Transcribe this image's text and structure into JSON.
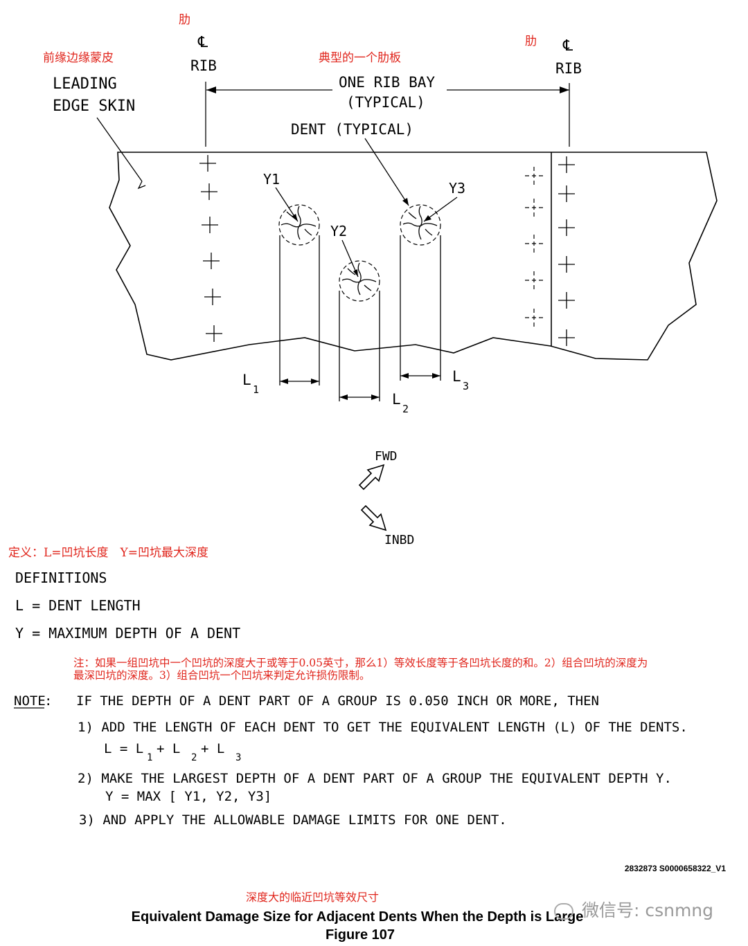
{
  "annotations_cn": {
    "rib_left": "肋",
    "rib_right": "肋",
    "leading_edge": "前缘边缘蒙皮",
    "one_rib_bay": "典型的一个肋板",
    "definitions": "定义：L=凹坑长度　Y=凹坑最大深度",
    "note_line1": "注：如果一组凹坑中一个凹坑的深度大于或等于0.05英寸，那么1）等效长度等于各凹坑长度的和。2）组合凹坑的深度为",
    "note_line2": "最深凹坑的深度。3）组合凹坑一个凹坑来判定允许损伤限制。",
    "caption": "深度大的临近凹坑等效尺寸"
  },
  "labels": {
    "cl_symbol": "℄",
    "rib": "RIB",
    "leading_edge_1": "LEADING",
    "leading_edge_2": "EDGE SKIN",
    "one_rib_bay_1": "ONE RIB BAY",
    "one_rib_bay_2": "(TYPICAL)",
    "dent_typical": "DENT (TYPICAL)",
    "y1": "Y1",
    "y2": "Y2",
    "y3": "Y3",
    "l": "L",
    "sub1": "1",
    "sub2": "2",
    "sub3": "3",
    "fwd": "FWD",
    "inbd": "INBD"
  },
  "definitions": {
    "heading": "DEFINITIONS",
    "l_def": "L = DENT LENGTH",
    "y_def": "Y = MAXIMUM DEPTH OF A DENT"
  },
  "note": {
    "label": "NOTE",
    "colon": ":",
    "intro": "IF THE DEPTH OF A DENT PART OF A GROUP IS 0.050 INCH OR MORE, THEN",
    "step1": "1) ADD THE LENGTH OF EACH DENT TO GET THE EQUIVALENT LENGTH (L) OF THE DENTS.",
    "eq1_l": "L = L",
    "eq1_p1": " + L",
    "eq1_p2": " + L",
    "step2": "2) MAKE THE LARGEST DEPTH OF A DENT PART OF A GROUP THE EQUIVALENT DEPTH Y.",
    "eq2": "Y = MAX [ Y1, Y2, Y3]",
    "step3": "3) AND APPLY THE ALLOWABLE DAMAGE LIMITS FOR ONE DENT."
  },
  "doc_id": "2832873 S0000658322_V1",
  "caption": {
    "title": "Equivalent Damage Size for Adjacent Dents When the Depth is Large",
    "figure": "Figure 107"
  },
  "watermark": "微信号: csnmng"
}
